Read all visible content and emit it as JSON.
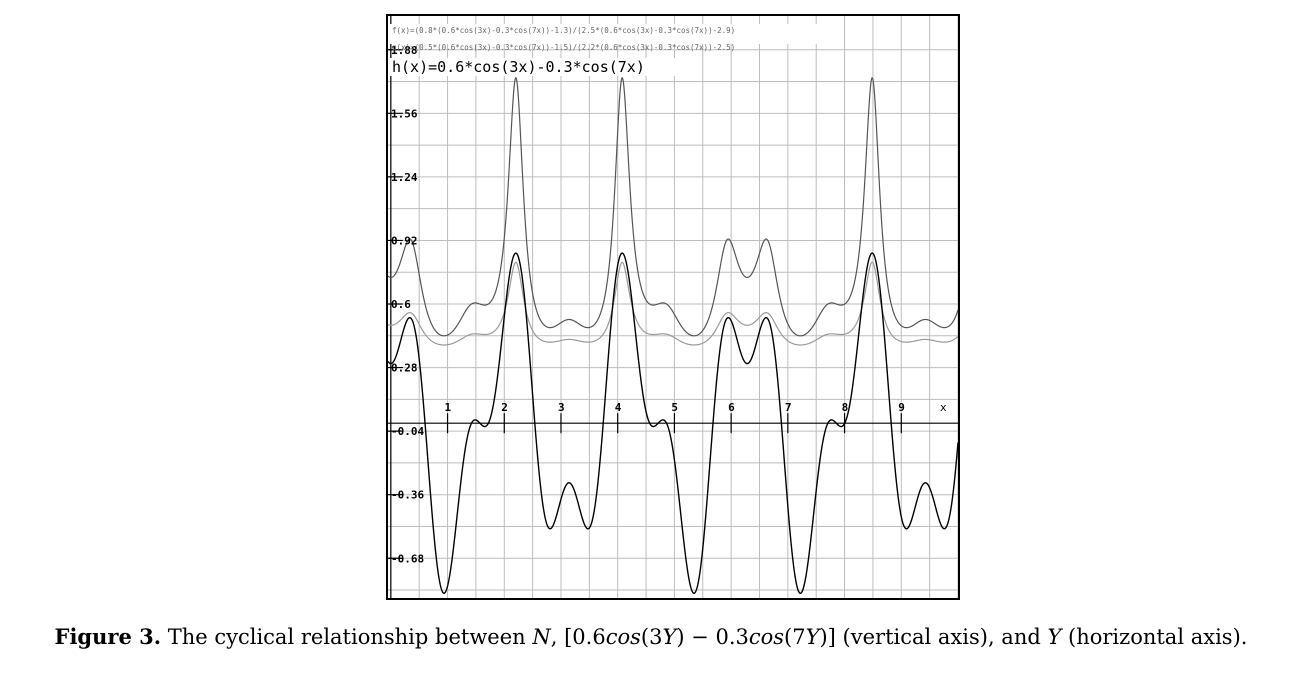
{
  "chart_data": {
    "type": "line",
    "formulas": {
      "f": "f(x)=(0.8*(0.6*cos(3x)-0.3*cos(7x))-1.3)/(2.5*(0.6*cos(3x)-0.3*cos(7x))-2.9)",
      "g": "g(x)=(0.5*(0.6*cos(3x)-0.3*cos(7x))-1.5)/(2.2*(0.6*cos(3x)-0.3*cos(7x))-2.5)",
      "h": "h(x)=0.6*cos(3x)-0.3*cos(7x)"
    },
    "x_ticks": [
      "1",
      "2",
      "3",
      "4",
      "5",
      "6",
      "7",
      "8",
      "9"
    ],
    "x_axis_label": "x",
    "y_ticks": [
      {
        "value": 1.88,
        "label": "1.88"
      },
      {
        "value": 1.56,
        "label": "1.56"
      },
      {
        "value": 1.24,
        "label": "1.24"
      },
      {
        "value": 0.92,
        "label": "0.92"
      },
      {
        "value": 0.6,
        "label": "0.6"
      },
      {
        "value": 0.28,
        "label": "0.28"
      },
      {
        "value": -0.04,
        "label": "-0.04"
      },
      {
        "value": -0.36,
        "label": "-0.36"
      },
      {
        "value": -0.68,
        "label": "-0.68"
      }
    ],
    "xlim": [
      -0.05,
      10
    ],
    "ylim": [
      -0.88,
      2.05
    ],
    "grid": true,
    "colors": {
      "f": "#9a9a9a",
      "g": "#555555",
      "h": "#000000",
      "grid": "#bdbdbd"
    }
  },
  "caption": {
    "prefix": "Figure 3.",
    "text1": " The cyclical relationship between ",
    "var_n": "N",
    "text2": ", [0.6",
    "cos1": "cos",
    "text3": "(3",
    "var_y1": "Y",
    "text4": ") − 0.3",
    "cos2": "cos",
    "text5": "(7",
    "var_y2": "Y",
    "text6": ")]  (vertical axis), and  ",
    "var_y3": "Y",
    "text7": "  (horizontal axis)."
  }
}
